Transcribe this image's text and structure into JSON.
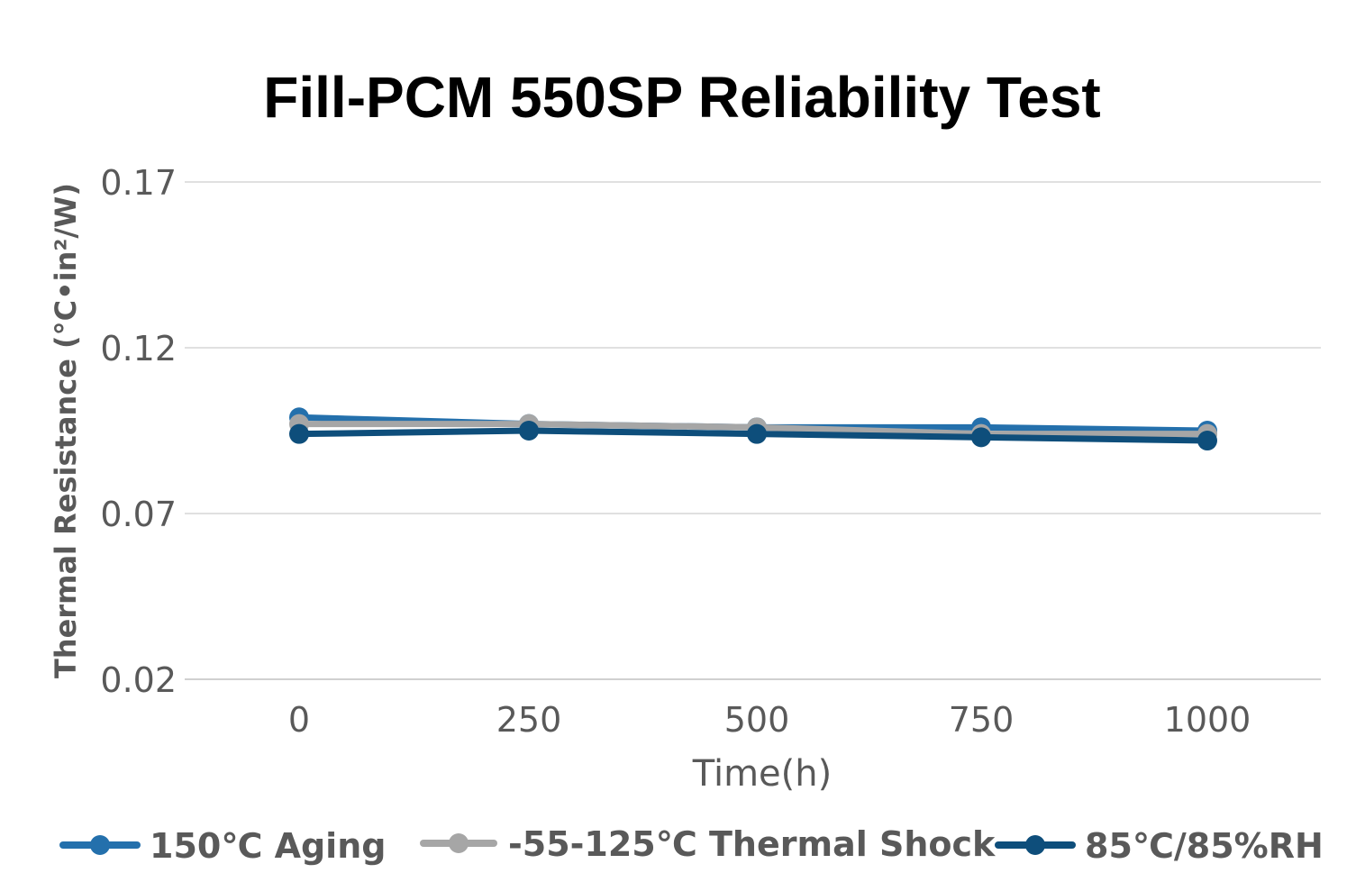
{
  "chart_data": {
    "type": "line",
    "title": "Fill-PCM 550SP Reliability Test",
    "xlabel": "Time(h)",
    "ylabel": "Thermal Resistance (°C•in²/W)",
    "categories": [
      "0",
      "250",
      "500",
      "750",
      "1000"
    ],
    "yticks": [
      "0.17",
      "0.12",
      "0.07",
      "0.02"
    ],
    "ylim": [
      0.02,
      0.17
    ],
    "grid": true,
    "legend_position": "bottom",
    "series": [
      {
        "name": "150℃ Aging",
        "color": "#2470AC",
        "values": [
          0.099,
          0.097,
          0.096,
          0.096,
          0.095
        ]
      },
      {
        "name": "-55-125℃ Thermal Shock",
        "color": "#A6A6A6",
        "values": [
          0.097,
          0.097,
          0.096,
          0.094,
          0.094
        ]
      },
      {
        "name": "85℃/85%RH",
        "color": "#0E4E7B",
        "values": [
          0.094,
          0.095,
          0.094,
          0.093,
          0.092
        ]
      }
    ]
  }
}
